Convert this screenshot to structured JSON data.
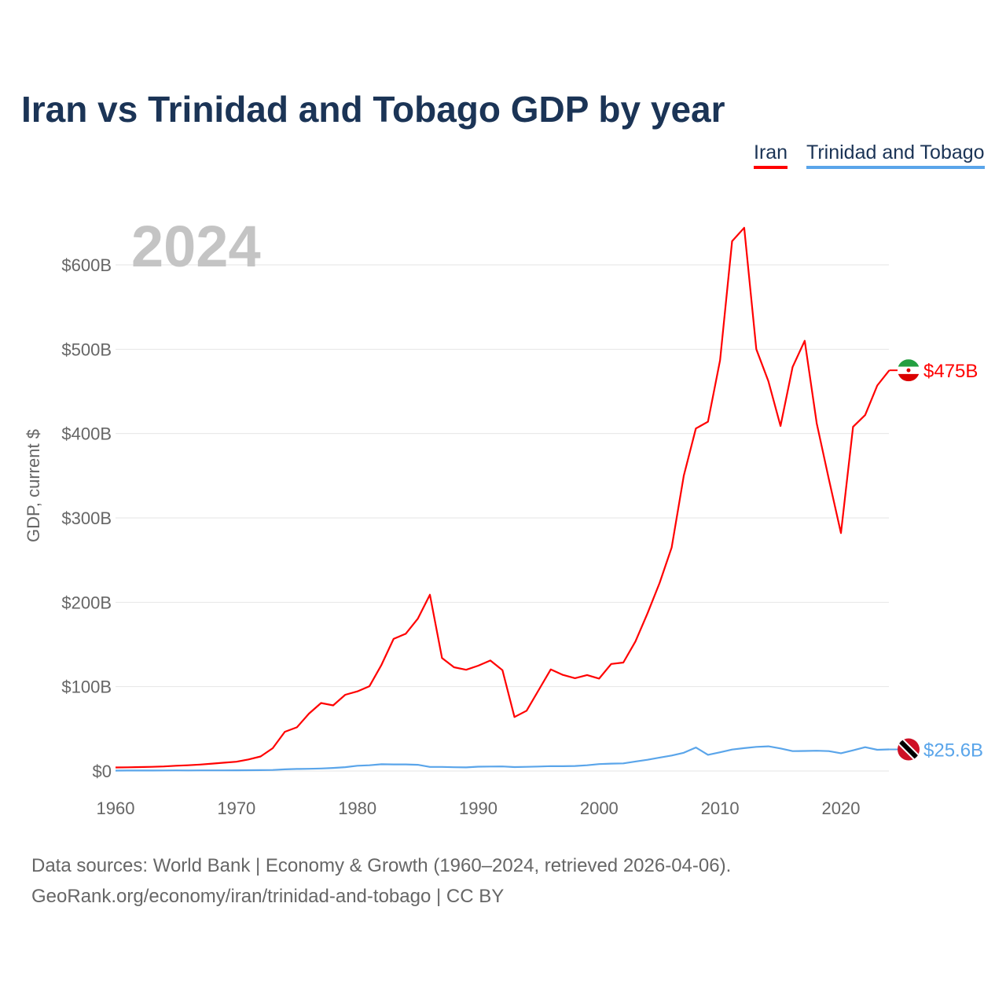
{
  "chart_data": {
    "type": "line",
    "title": "Iran vs Trinidad and Tobago GDP by year",
    "ylabel": "GDP, current $",
    "xlabel": "",
    "year_label": "2024",
    "xlim": [
      1960,
      2024
    ],
    "ylim": [
      0,
      650
    ],
    "x_ticks": [
      1960,
      1970,
      1980,
      1990,
      2000,
      2010,
      2020
    ],
    "x_tick_labels": [
      "1960",
      "1970",
      "1980",
      "1990",
      "2000",
      "2010",
      "2020"
    ],
    "y_ticks": [
      0,
      100,
      200,
      300,
      400,
      500,
      600
    ],
    "y_tick_labels": [
      "$0",
      "$100B",
      "$200B",
      "$300B",
      "$400B",
      "$500B",
      "$600B"
    ],
    "grid": true,
    "legend_position": "top-right",
    "x": [
      1960,
      1961,
      1962,
      1963,
      1964,
      1965,
      1966,
      1967,
      1968,
      1969,
      1970,
      1971,
      1972,
      1973,
      1974,
      1975,
      1976,
      1977,
      1978,
      1979,
      1980,
      1981,
      1982,
      1983,
      1984,
      1985,
      1986,
      1987,
      1988,
      1989,
      1990,
      1991,
      1992,
      1993,
      1994,
      1995,
      1996,
      1997,
      1998,
      1999,
      2000,
      2001,
      2002,
      2003,
      2004,
      2005,
      2006,
      2007,
      2008,
      2009,
      2010,
      2011,
      2012,
      2013,
      2014,
      2015,
      2016,
      2017,
      2018,
      2019,
      2020,
      2021,
      2022,
      2023,
      2024
    ],
    "series": [
      {
        "name": "Iran",
        "color": "#ff0000",
        "end_label": "$475B",
        "values": [
          4.2,
          4.4,
          4.7,
          4.9,
          5.4,
          6.2,
          6.8,
          7.6,
          8.8,
          9.9,
          11,
          13.7,
          17.2,
          27,
          46.5,
          51.8,
          68,
          80.6,
          77.8,
          90.4,
          94.4,
          100.5,
          125.9,
          156.6,
          162.7,
          180.6,
          209,
          134,
          123,
          120,
          124.8,
          131,
          119.5,
          64,
          71.5,
          96,
          120.5,
          113.9,
          110,
          113.8,
          109.6,
          126.9,
          128.6,
          153.5,
          187,
          223,
          265,
          349.9,
          406,
          414,
          487,
          628,
          644,
          500,
          462,
          409,
          479,
          510,
          412,
          346,
          282,
          408,
          422,
          457,
          475
        ]
      },
      {
        "name": "Trinidad and Tobago",
        "color": "#5aa5ea",
        "end_label": "$25.6B",
        "values": [
          0.5,
          0.55,
          0.6,
          0.6,
          0.65,
          0.7,
          0.65,
          0.7,
          0.7,
          0.75,
          0.8,
          0.9,
          1.0,
          1.2,
          2.0,
          2.4,
          2.6,
          3.0,
          3.6,
          4.6,
          6.2,
          6.8,
          8.0,
          7.8,
          7.8,
          7.4,
          4.8,
          4.8,
          4.5,
          4.3,
          5.1,
          5.3,
          5.4,
          4.7,
          4.9,
          5.3,
          5.8,
          5.7,
          6.0,
          6.8,
          8.2,
          8.8,
          9.0,
          11.3,
          13.3,
          15.9,
          18.4,
          21.6,
          27.9,
          19.2,
          22.2,
          25.4,
          27.1,
          28.6,
          29.3,
          26.7,
          23.6,
          23.8,
          24.0,
          23.6,
          21.1,
          24.5,
          28.2,
          25.2,
          25.6
        ]
      }
    ]
  },
  "source_line1": "Data sources: World Bank | Economy & Growth (1960–2024, retrieved 2026-04-06).",
  "source_line2": "GeoRank.org/economy/iran/trinidad-and-tobago | CC BY"
}
